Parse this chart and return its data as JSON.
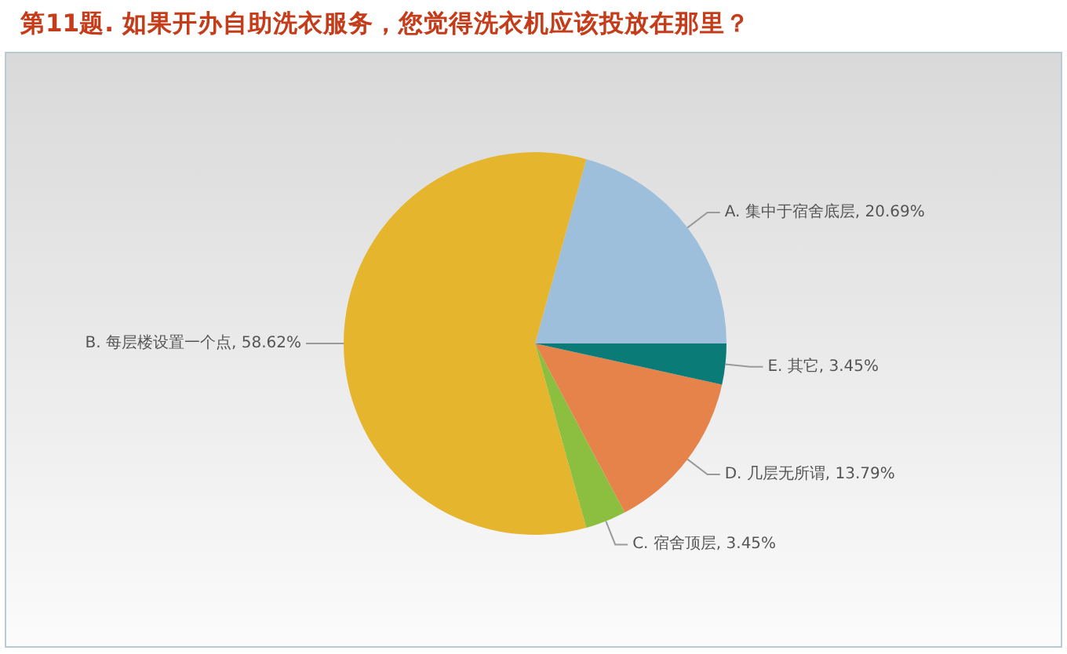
{
  "chart_data": {
    "type": "pie",
    "title": "第11题. 如果开办自助洗衣服务，您觉得洗衣机应该投放在那里？",
    "categories": [
      "A. 集中于宿舍底层",
      "B. 每层楼设置一个点",
      "C. 宿舍顶层",
      "D. 几层无所谓",
      "E. 其它"
    ],
    "values": [
      20.69,
      58.62,
      3.45,
      13.79,
      3.45
    ],
    "colors": [
      "#9dbfdc",
      "#e5b52e",
      "#8cbf3f",
      "#e5834a",
      "#0b7b78"
    ],
    "value_labels": [
      "20.69%",
      "58.62%",
      "3.45%",
      "13.79%",
      "3.45%"
    ]
  }
}
